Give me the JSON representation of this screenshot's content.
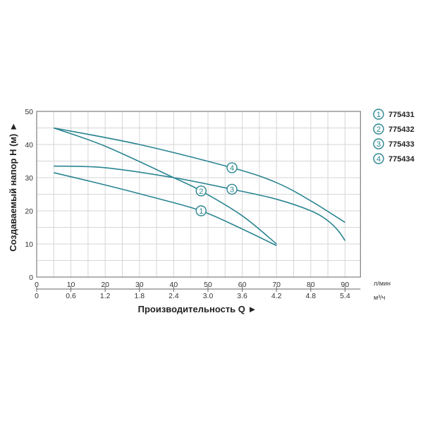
{
  "chart_data": {
    "type": "line",
    "title": "",
    "xlabel": "Производительность Q ►",
    "ylabel": "Создаваемый напор H (м) ►",
    "x_unit_primary": "л/мин",
    "x_unit_secondary": "м³/ч",
    "xlim": [
      0,
      94.5
    ],
    "ylim": [
      0,
      50
    ],
    "x_ticks": [
      0,
      10,
      20,
      30,
      40,
      50,
      60,
      70,
      80,
      90
    ],
    "x_tick_labels": [
      "0",
      "10",
      "20",
      "30",
      "40",
      "50",
      "60",
      "70",
      "80",
      "90"
    ],
    "x2_tick_labels": [
      "0",
      "0.6",
      "1.2",
      "1.8",
      "2.4",
      "3.0",
      "3.6",
      "4.2",
      "4.8",
      "5.4"
    ],
    "y_ticks": [
      0,
      10,
      20,
      30,
      40,
      50
    ],
    "y_tick_labels": [
      "0",
      "10",
      "20",
      "30",
      "40",
      "50"
    ],
    "grid": true,
    "grid_step_x": 5,
    "grid_step_y": 5,
    "legend_position": "right",
    "line_color": "#2a8591",
    "series": [
      {
        "name": "775431",
        "marker": "1",
        "marker_at": 48,
        "x": [
          5,
          20,
          35,
          48,
          60,
          70
        ],
        "y": [
          31.5,
          27.8,
          23.8,
          20,
          14.5,
          9.5
        ]
      },
      {
        "name": "775432",
        "marker": "2",
        "marker_at": 48,
        "x": [
          5,
          20,
          40,
          48,
          60,
          70
        ],
        "y": [
          45,
          39.5,
          30,
          26,
          18.5,
          10
        ]
      },
      {
        "name": "775433",
        "marker": "3",
        "marker_at": 57,
        "x": [
          5,
          20,
          40,
          57,
          70,
          80,
          85,
          88,
          90
        ],
        "y": [
          33.5,
          33,
          30,
          26.5,
          23.5,
          20,
          17,
          14,
          11
        ]
      },
      {
        "name": "775434",
        "marker": "4",
        "marker_at": 57,
        "x": [
          5,
          30,
          57,
          70,
          80,
          90
        ],
        "y": [
          45,
          40,
          33,
          28.5,
          23,
          16.5
        ]
      }
    ]
  }
}
